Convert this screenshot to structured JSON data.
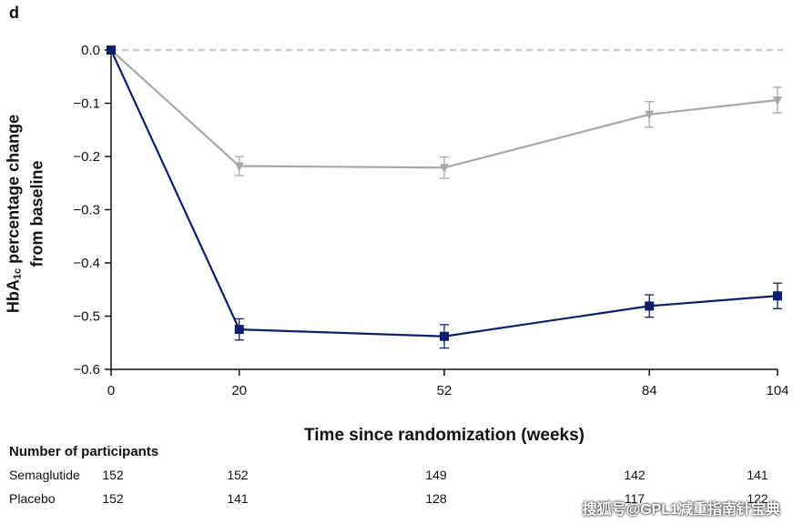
{
  "panel_label": "d",
  "ylabel": {
    "main": "HbA",
    "sub": "1c",
    "rest": " percentage change",
    "line2": "from baseline"
  },
  "xlabel": "Time since randomization (weeks)",
  "participants": {
    "title": "Number of participants",
    "rows": [
      {
        "label": "Semaglutide",
        "values": [
          "152",
          "152",
          "149",
          "142",
          "141"
        ]
      },
      {
        "label": "Placebo",
        "values": [
          "152",
          "141",
          "128",
          "117",
          "122"
        ]
      }
    ]
  },
  "watermark": "搜狐号@GPL1减重指南针宝典",
  "chart_data": {
    "type": "line",
    "x": [
      0,
      20,
      52,
      84,
      104
    ],
    "xticks": [
      "0",
      "20",
      "52",
      "84",
      "104"
    ],
    "ylim": [
      -0.6,
      0.0
    ],
    "yticks": [
      "0.0",
      "−0.1",
      "−0.2",
      "−0.3",
      "−0.4",
      "−0.5",
      "−0.6"
    ],
    "ytick_values": [
      0.0,
      -0.1,
      -0.2,
      -0.3,
      -0.4,
      -0.5,
      -0.6
    ],
    "reference_line": 0.0,
    "series": [
      {
        "marker": "square",
        "color": "#0d1f6b",
        "values": [
          0.0,
          -0.525,
          -0.538,
          -0.481,
          -0.462
        ],
        "err": [
          0.0,
          0.02,
          0.022,
          0.021,
          0.024
        ]
      },
      {
        "marker": "triangle-down",
        "color": "#a8a8a8",
        "values": [
          0.0,
          -0.218,
          -0.221,
          -0.121,
          -0.094
        ],
        "err": [
          0.0,
          0.018,
          0.02,
          0.024,
          0.024
        ]
      }
    ]
  }
}
